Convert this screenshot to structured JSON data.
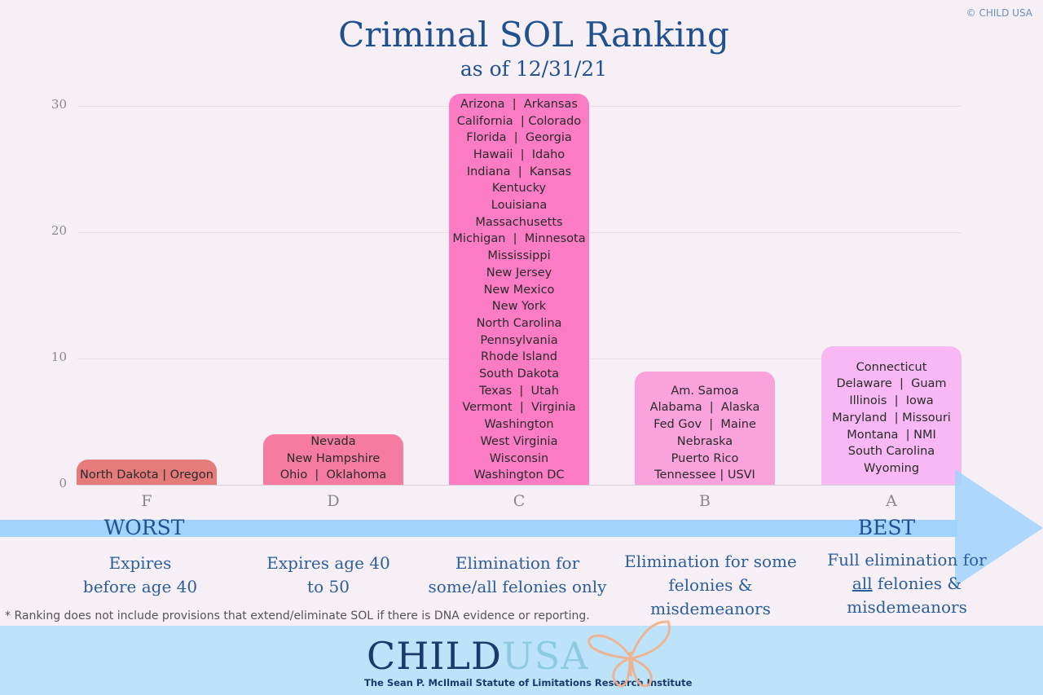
{
  "copyright": "© CHILD USA",
  "chart_data": {
    "type": "bar",
    "title": "Criminal SOL Ranking",
    "subtitle": "as of 12/31/21",
    "categories": [
      "F",
      "D",
      "C",
      "B",
      "A"
    ],
    "values": [
      2,
      4,
      31,
      9,
      11
    ],
    "ylim": [
      0,
      31
    ],
    "yticks": [
      "0",
      "10",
      "20",
      "30"
    ],
    "grid": true,
    "colors": [
      "#e57b7b",
      "#f57ca0",
      "#fb7cc4",
      "#f9a2dc",
      "#f7b8f3"
    ],
    "bar_labels": [
      [
        "North Dakota | Oregon"
      ],
      [
        "Nevada",
        "New Hampshire",
        "Ohio  |  Oklahoma"
      ],
      [
        "Arizona  |  Arkansas",
        "California  | Colorado",
        "Florida  |  Georgia",
        "Hawaii  |  Idaho",
        "Indiana  |  Kansas",
        "Kentucky",
        "Louisiana",
        "Massachusetts",
        "Michigan  |  Minnesota",
        "Mississippi",
        "New Jersey",
        "New Mexico",
        "New York",
        "North Carolina",
        "Pennsylvania",
        "Rhode Island",
        "South Dakota",
        "Texas  |  Utah",
        "Vermont  |  Virginia",
        "Washington",
        "West Virginia",
        "Wisconsin",
        "Washington DC"
      ],
      [
        "Am. Samoa",
        "Alabama  |  Alaska",
        "Fed Gov  |  Maine",
        "Nebraska",
        "Puerto Rico",
        "Tennessee | USVI"
      ],
      [
        "Connecticut",
        "Delaware  |  Guam",
        "Illinois  |  Iowa",
        "Maryland  | Missouri",
        "Montana  | NMI",
        "South Carolina",
        "Wyoming"
      ]
    ]
  },
  "scale": {
    "worst": "WORST",
    "best": "BEST",
    "descriptions": [
      [
        "Expires",
        "before age 40"
      ],
      [
        "Expires age 40",
        "to 50"
      ],
      [
        "Elimination for",
        "some/all felonies only"
      ],
      [
        "Elimination for some",
        "felonies &",
        "misdemeanors"
      ],
      [
        "Full elimination for",
        "all felonies &",
        "misdemeanors"
      ]
    ],
    "underlined_word": "all"
  },
  "footnote": "* Ranking does not include provisions that extend/eliminate SOL if there is DNA evidence or reporting.",
  "logo": {
    "child": "CHILD",
    "usa": "USA",
    "tagline": "The Sean P. McIlmail Statute of Limitations Research Institute"
  }
}
